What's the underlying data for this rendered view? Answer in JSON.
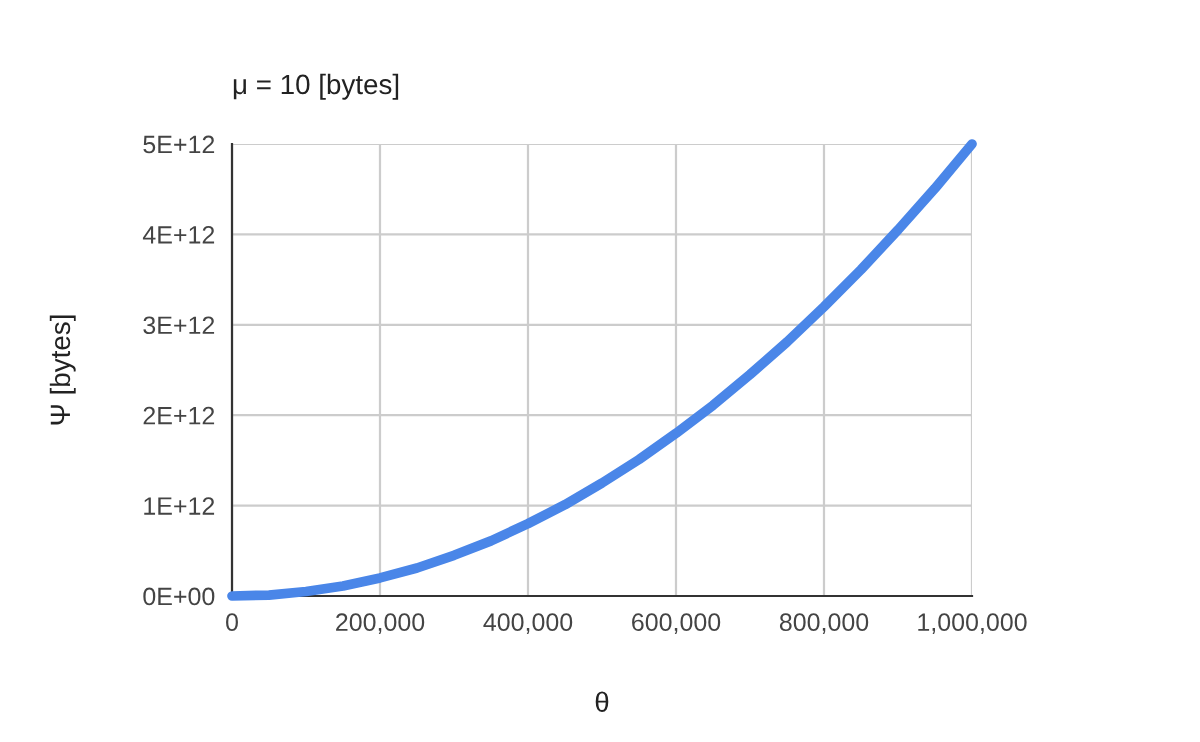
{
  "chart_data": {
    "type": "line",
    "title": "μ = 10 [bytes]",
    "xlabel": "θ",
    "ylabel": "Ψ [bytes]",
    "x": [
      0,
      50000,
      100000,
      150000,
      200000,
      250000,
      300000,
      350000,
      400000,
      450000,
      500000,
      550000,
      600000,
      650000,
      700000,
      750000,
      800000,
      850000,
      900000,
      950000,
      1000000
    ],
    "series": [
      {
        "color": "#4a86e8",
        "values": [
          0,
          10000000000.0,
          50000000000.0,
          110000000000.0,
          200000000000.0,
          310000000000.0,
          450000000000.0,
          610000000000.0,
          800000000000.0,
          1010000000000.0,
          1250000000000.0,
          1510000000000.0,
          1800000000000.0,
          2110000000000.0,
          2450000000000.0,
          2810000000000.0,
          3200000000000.0,
          3610000000000.0,
          4050000000000.0,
          4510000000000.0,
          5000000000000.0
        ]
      }
    ],
    "xlim": [
      0,
      1000000
    ],
    "ylim": [
      0,
      5000000000000.0
    ],
    "xticks": [
      {
        "value": 0,
        "label": "0"
      },
      {
        "value": 200000,
        "label": "200,000"
      },
      {
        "value": 400000,
        "label": "400,000"
      },
      {
        "value": 600000,
        "label": "600,000"
      },
      {
        "value": 800000,
        "label": "800,000"
      },
      {
        "value": 1000000,
        "label": "1,000,000"
      }
    ],
    "yticks": [
      {
        "value": 0,
        "label": "0E+00"
      },
      {
        "value": 1000000000000.0,
        "label": "1E+12"
      },
      {
        "value": 2000000000000.0,
        "label": "2E+12"
      },
      {
        "value": 3000000000000.0,
        "label": "3E+12"
      },
      {
        "value": 4000000000000.0,
        "label": "4E+12"
      },
      {
        "value": 5000000000000.0,
        "label": "5E+12"
      }
    ],
    "grid": true,
    "legend": false,
    "marker": "none",
    "line_style": "solid"
  }
}
